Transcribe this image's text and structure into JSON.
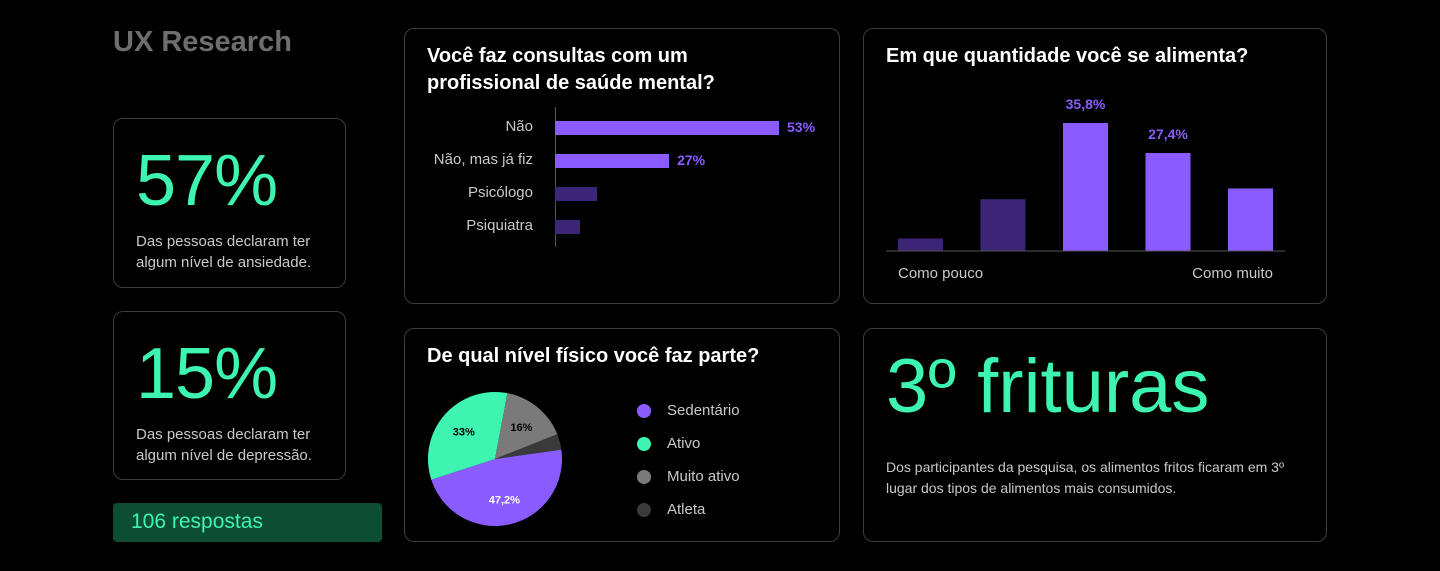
{
  "page_title": "UX Research",
  "stats": [
    {
      "value": "57%",
      "description": "Das pessoas declaram ter algum nível de ansiedade."
    },
    {
      "value": "15%",
      "description": "Das pessoas declaram ter algum nível de depressão."
    }
  ],
  "responses_label": "106 respostas",
  "colors": {
    "accent_green": "#3df5b0",
    "accent_purple": "#8a5cff",
    "dark_purple": "#3a2577",
    "grey": "#7a7a7a",
    "dark_grey": "#3a3a3a"
  },
  "chart_data": [
    {
      "type": "bar",
      "orientation": "horizontal",
      "title": "Você faz consultas com um profissional de saúde mental?",
      "categories": [
        "Não",
        "Não, mas já fiz",
        "Psicólogo",
        "Psiquiatra"
      ],
      "values": [
        53,
        27,
        10,
        6
      ],
      "value_labels": [
        "53%",
        "27%",
        "",
        ""
      ],
      "colors": [
        "#8a5cff",
        "#8a5cff",
        "#3a2577",
        "#3a2577"
      ],
      "xlim": [
        0,
        53
      ]
    },
    {
      "type": "bar",
      "title": "Em que quantidade você se alimenta?",
      "categories": [
        "1",
        "2",
        "3",
        "4",
        "5"
      ],
      "values": [
        3.5,
        14.5,
        35.8,
        27.4,
        17.5
      ],
      "value_labels": [
        "",
        "",
        "35,8%",
        "27,4%",
        ""
      ],
      "colors": [
        "#3a2577",
        "#3a2577",
        "#8a5cff",
        "#8a5cff",
        "#8a5cff"
      ],
      "xlabel_left": "Como pouco",
      "xlabel_right": "Como muito",
      "ylim": [
        0,
        35.8
      ]
    },
    {
      "type": "pie",
      "title": "De qual nível físico você faz parte?",
      "series": [
        {
          "name": "Sedentário",
          "value": 47.2,
          "label": "47,2%",
          "color": "#8a5cff",
          "label_color": "#ffffff"
        },
        {
          "name": "Ativo",
          "value": 33,
          "label": "33%",
          "color": "#3df5b0",
          "label_color": "#000000"
        },
        {
          "name": "Muito ativo",
          "value": 16,
          "label": "16%",
          "color": "#7a7a7a",
          "label_color": "#000000"
        },
        {
          "name": "Atleta",
          "value": 3.8,
          "label": "",
          "color": "#3a3a3a",
          "label_color": "#ffffff"
        }
      ],
      "legend": "right"
    }
  ],
  "fry": {
    "headline": "3º frituras",
    "description": "Dos participantes da pesquisa, os alimentos fritos ficaram em 3º lugar dos tipos de alimentos mais consumidos."
  }
}
